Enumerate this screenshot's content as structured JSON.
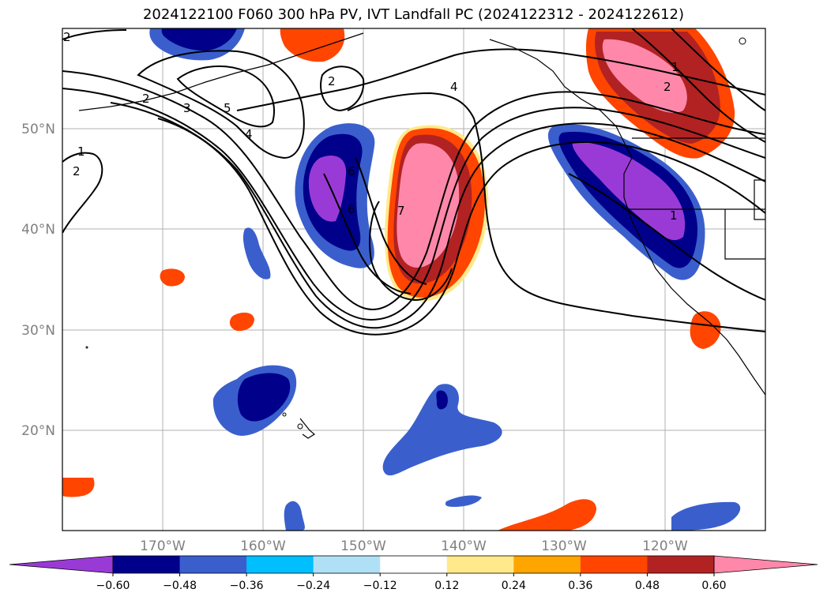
{
  "title": "2024122100 F060 300 hPa PV, IVT Landfall PC (2024122312 - 2024122612)",
  "map": {
    "lon_labels": [
      "170°W",
      "160°W",
      "150°W",
      "140°W",
      "130°W",
      "120°W"
    ],
    "lat_labels": [
      "50°N",
      "40°N",
      "30°N",
      "20°N"
    ],
    "contour_labels": [
      "2",
      "2",
      "3",
      "5",
      "4",
      "2",
      "4",
      "1",
      "2",
      "6",
      "6",
      "7",
      "1",
      "2",
      "1"
    ]
  },
  "colorbar": {
    "colors": [
      "#9a3ad6",
      "#00008b",
      "#3a5fcd",
      "#00bfff",
      "#b0e0f6",
      "#ffffff",
      "#ffe98a",
      "#ffa500",
      "#ff4500",
      "#b22222",
      "#ff88aa"
    ],
    "tick_labels": [
      "−0.60",
      "−0.48",
      "−0.36",
      "−0.24",
      "−0.12",
      "0.12",
      "0.24",
      "0.36",
      "0.48",
      "0.60"
    ]
  }
}
